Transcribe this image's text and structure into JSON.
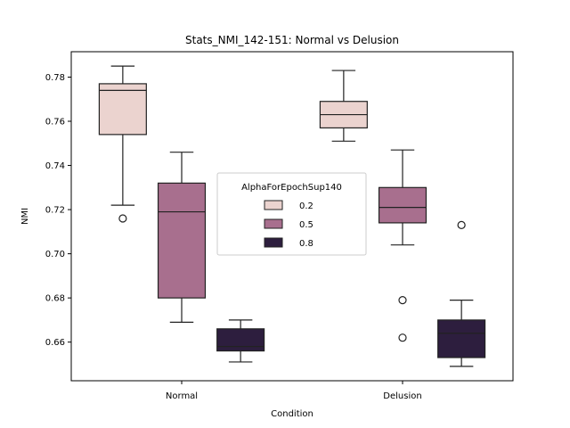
{
  "chart_data": {
    "type": "box",
    "title": "Stats_NMI_142-151: Normal vs Delusion",
    "xlabel": "Condition",
    "ylabel": "NMI",
    "categories": [
      "Normal",
      "Delusion"
    ],
    "ylim": [
      0.6425,
      0.7915
    ],
    "yticks": [
      "0.66",
      "0.68",
      "0.70",
      "0.72",
      "0.74",
      "0.76",
      "0.78"
    ],
    "ytick_values": [
      0.66,
      0.68,
      0.7,
      0.72,
      0.74,
      0.76,
      0.78
    ],
    "grid": false,
    "legend": {
      "title": "AlphaForEpochSup140",
      "placement": "center",
      "entries": [
        "0.2",
        "0.5",
        "0.8"
      ]
    },
    "series": [
      {
        "name": "0.2",
        "color": "#ebd3cf",
        "boxes": [
          {
            "whisker_low": 0.722,
            "q1": 0.754,
            "median": 0.774,
            "q3": 0.777,
            "whisker_high": 0.785,
            "outliers": [
              0.716
            ]
          },
          {
            "whisker_low": 0.751,
            "q1": 0.757,
            "median": 0.763,
            "q3": 0.769,
            "whisker_high": 0.783,
            "outliers": []
          }
        ]
      },
      {
        "name": "0.5",
        "color": "#a86f8e",
        "boxes": [
          {
            "whisker_low": 0.669,
            "q1": 0.68,
            "median": 0.719,
            "q3": 0.732,
            "whisker_high": 0.746,
            "outliers": []
          },
          {
            "whisker_low": 0.704,
            "q1": 0.714,
            "median": 0.721,
            "q3": 0.73,
            "whisker_high": 0.747,
            "outliers": [
              0.679,
              0.662
            ]
          }
        ]
      },
      {
        "name": "0.8",
        "color": "#2d1e3e",
        "boxes": [
          {
            "whisker_low": 0.651,
            "q1": 0.656,
            "median": 0.658,
            "q3": 0.666,
            "whisker_high": 0.67,
            "outliers": []
          },
          {
            "whisker_low": 0.649,
            "q1": 0.653,
            "median": 0.664,
            "q3": 0.67,
            "whisker_high": 0.679,
            "outliers": [
              0.713
            ]
          }
        ]
      }
    ]
  }
}
